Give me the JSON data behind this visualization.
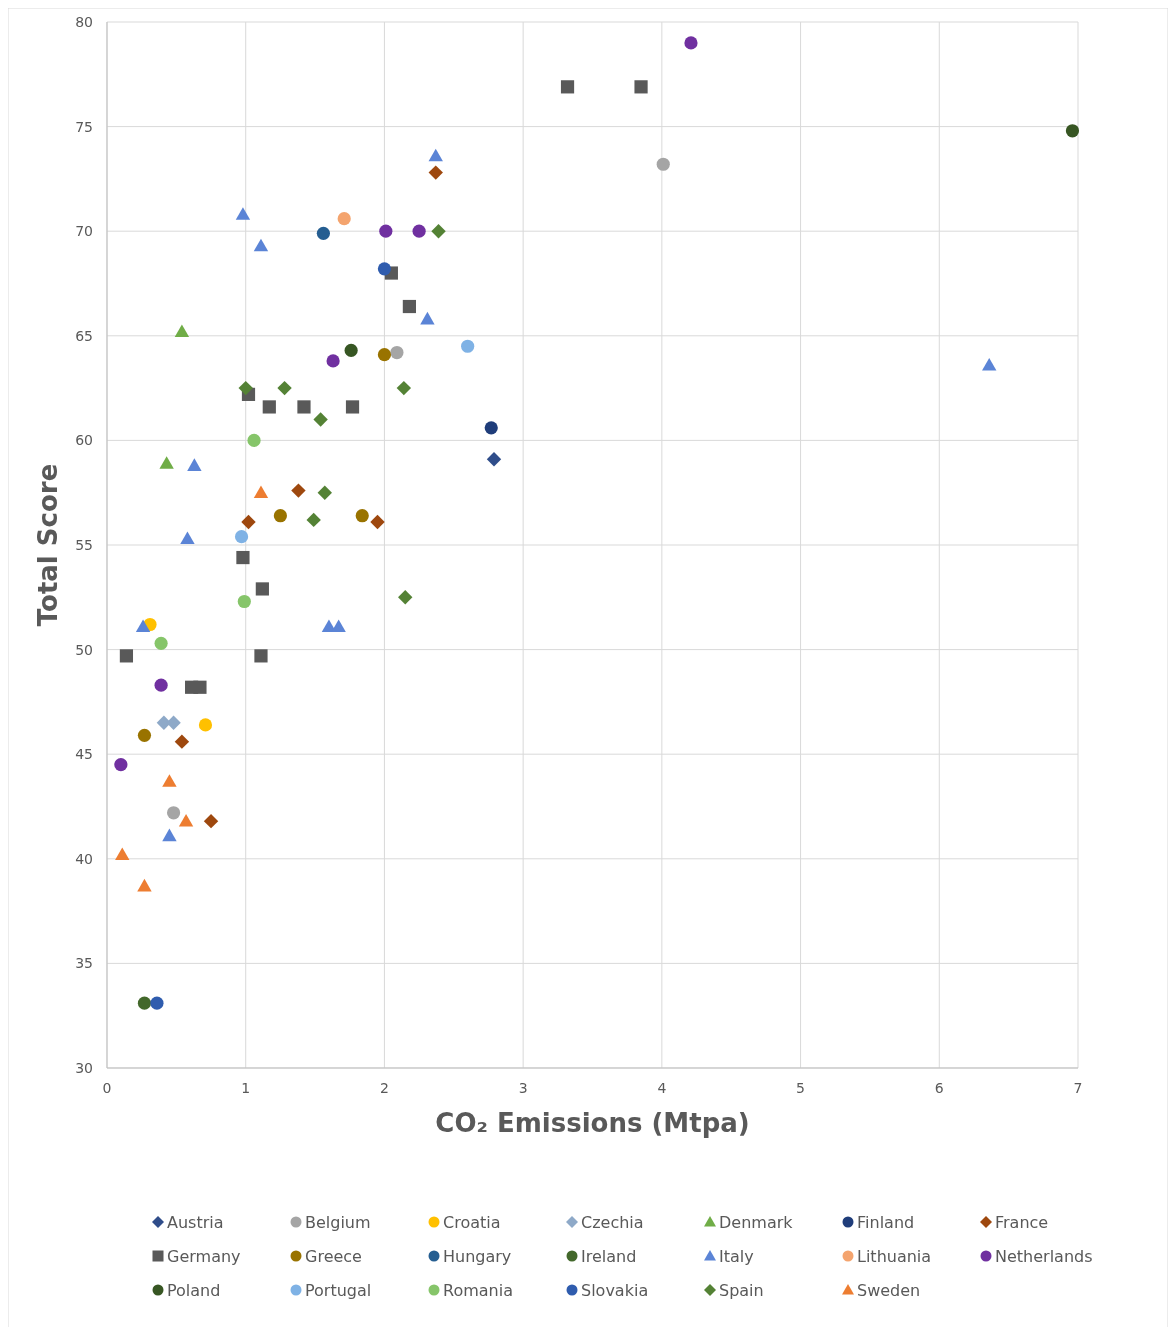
{
  "chart_data": {
    "type": "scatter",
    "xlabel": "CO₂ Emissions (Mtpa)",
    "ylabel": "Total Score",
    "xlim": [
      0,
      7
    ],
    "xticks": [
      0,
      1,
      2,
      3,
      4,
      5,
      6,
      7
    ],
    "ylim": [
      30,
      80
    ],
    "yticks": [
      30,
      35,
      40,
      45,
      50,
      55,
      60,
      65,
      70,
      75,
      80
    ],
    "grid": true,
    "legend": "bottom",
    "series": [
      {
        "name": "Austria",
        "color": "#2f4d8a",
        "marker": "diamond",
        "x": [
          2.79
        ],
        "values": [
          59.1
        ]
      },
      {
        "name": "Belgium",
        "color": "#a5a5a5",
        "marker": "circle",
        "x": [
          4.01,
          2.09,
          0.48
        ],
        "values": [
          73.2,
          64.2,
          42.2
        ]
      },
      {
        "name": "Croatia",
        "color": "#ffc000",
        "marker": "circle",
        "x": [
          0.31,
          0.71
        ],
        "values": [
          51.2,
          46.4
        ]
      },
      {
        "name": "Czechia",
        "color": "#8ea9c8",
        "marker": "diamond",
        "x": [
          0.41,
          0.48
        ],
        "values": [
          46.5,
          46.5
        ]
      },
      {
        "name": "Denmark",
        "color": "#70ad47",
        "marker": "triangle",
        "x": [
          0.54,
          0.43
        ],
        "values": [
          65.2,
          58.9
        ]
      },
      {
        "name": "Finland",
        "color": "#1f3d7a",
        "marker": "circle",
        "x": [
          2.77
        ],
        "values": [
          60.6
        ]
      },
      {
        "name": "France",
        "color": "#9e480e",
        "marker": "diamond",
        "x": [
          2.37,
          1.02,
          1.38,
          1.95,
          0.54,
          0.75
        ],
        "values": [
          72.8,
          56.1,
          57.6,
          56.1,
          45.6,
          41.8
        ]
      },
      {
        "name": "Germany",
        "color": "#595959",
        "marker": "square",
        "x": [
          3.32,
          3.85,
          2.05,
          2.18,
          1.02,
          1.17,
          1.42,
          1.77,
          0.98,
          1.12,
          1.11,
          0.14,
          0.61,
          0.67
        ],
        "values": [
          76.9,
          76.9,
          68.0,
          66.4,
          62.2,
          61.6,
          61.6,
          61.6,
          54.4,
          52.9,
          49.7,
          49.7,
          48.2,
          48.2
        ]
      },
      {
        "name": "Greece",
        "color": "#997300",
        "marker": "circle",
        "x": [
          2.0,
          1.25,
          1.84,
          0.27
        ],
        "values": [
          64.1,
          56.4,
          56.4,
          45.9
        ]
      },
      {
        "name": "Hungary",
        "color": "#255e91",
        "marker": "circle",
        "x": [
          1.56
        ],
        "values": [
          69.9
        ]
      },
      {
        "name": "Ireland",
        "color": "#43682b",
        "marker": "circle",
        "x": [
          0.27
        ],
        "values": [
          33.1
        ]
      },
      {
        "name": "Italy",
        "color": "#5b84d6",
        "marker": "triangle",
        "x": [
          2.37,
          0.98,
          1.11,
          2.31,
          6.36,
          0.63,
          0.58,
          0.26,
          1.6,
          1.67,
          0.45
        ],
        "values": [
          73.6,
          70.8,
          69.3,
          65.8,
          63.6,
          58.8,
          55.3,
          51.1,
          51.1,
          51.1,
          41.1
        ]
      },
      {
        "name": "Lithuania",
        "color": "#f4a46e",
        "marker": "circle",
        "x": [
          1.71
        ],
        "values": [
          70.6
        ]
      },
      {
        "name": "Netherlands",
        "color": "#7030a0",
        "marker": "circle",
        "x": [
          4.21,
          2.01,
          2.25,
          1.63,
          0.39,
          0.1
        ],
        "values": [
          79.0,
          70.0,
          70.0,
          63.8,
          48.3,
          44.5
        ]
      },
      {
        "name": "Poland",
        "color": "#375623",
        "marker": "circle",
        "x": [
          1.76,
          6.96
        ],
        "values": [
          64.3,
          74.8
        ]
      },
      {
        "name": "Portugal",
        "color": "#7fb2e5",
        "marker": "circle",
        "x": [
          2.6,
          0.97
        ],
        "values": [
          64.5,
          55.4
        ]
      },
      {
        "name": "Romania",
        "color": "#86c56a",
        "marker": "circle",
        "x": [
          1.06,
          0.99,
          0.39
        ],
        "values": [
          60.0,
          52.3,
          50.3
        ]
      },
      {
        "name": "Slovakia",
        "color": "#2f5cae",
        "marker": "circle",
        "x": [
          2.0,
          0.36
        ],
        "values": [
          68.2,
          33.1
        ]
      },
      {
        "name": "Spain",
        "color": "#548235",
        "marker": "diamond",
        "x": [
          1.0,
          1.28,
          2.14,
          2.39,
          1.54,
          1.57,
          1.49,
          2.15
        ],
        "values": [
          62.5,
          62.5,
          62.5,
          70.0,
          61.0,
          57.5,
          56.2,
          52.5
        ]
      },
      {
        "name": "Sweden",
        "color": "#ed7d31",
        "marker": "triangle",
        "x": [
          1.11,
          0.45,
          0.57,
          0.11,
          0.27
        ],
        "values": [
          57.5,
          43.7,
          41.8,
          40.2,
          38.7
        ]
      }
    ]
  }
}
